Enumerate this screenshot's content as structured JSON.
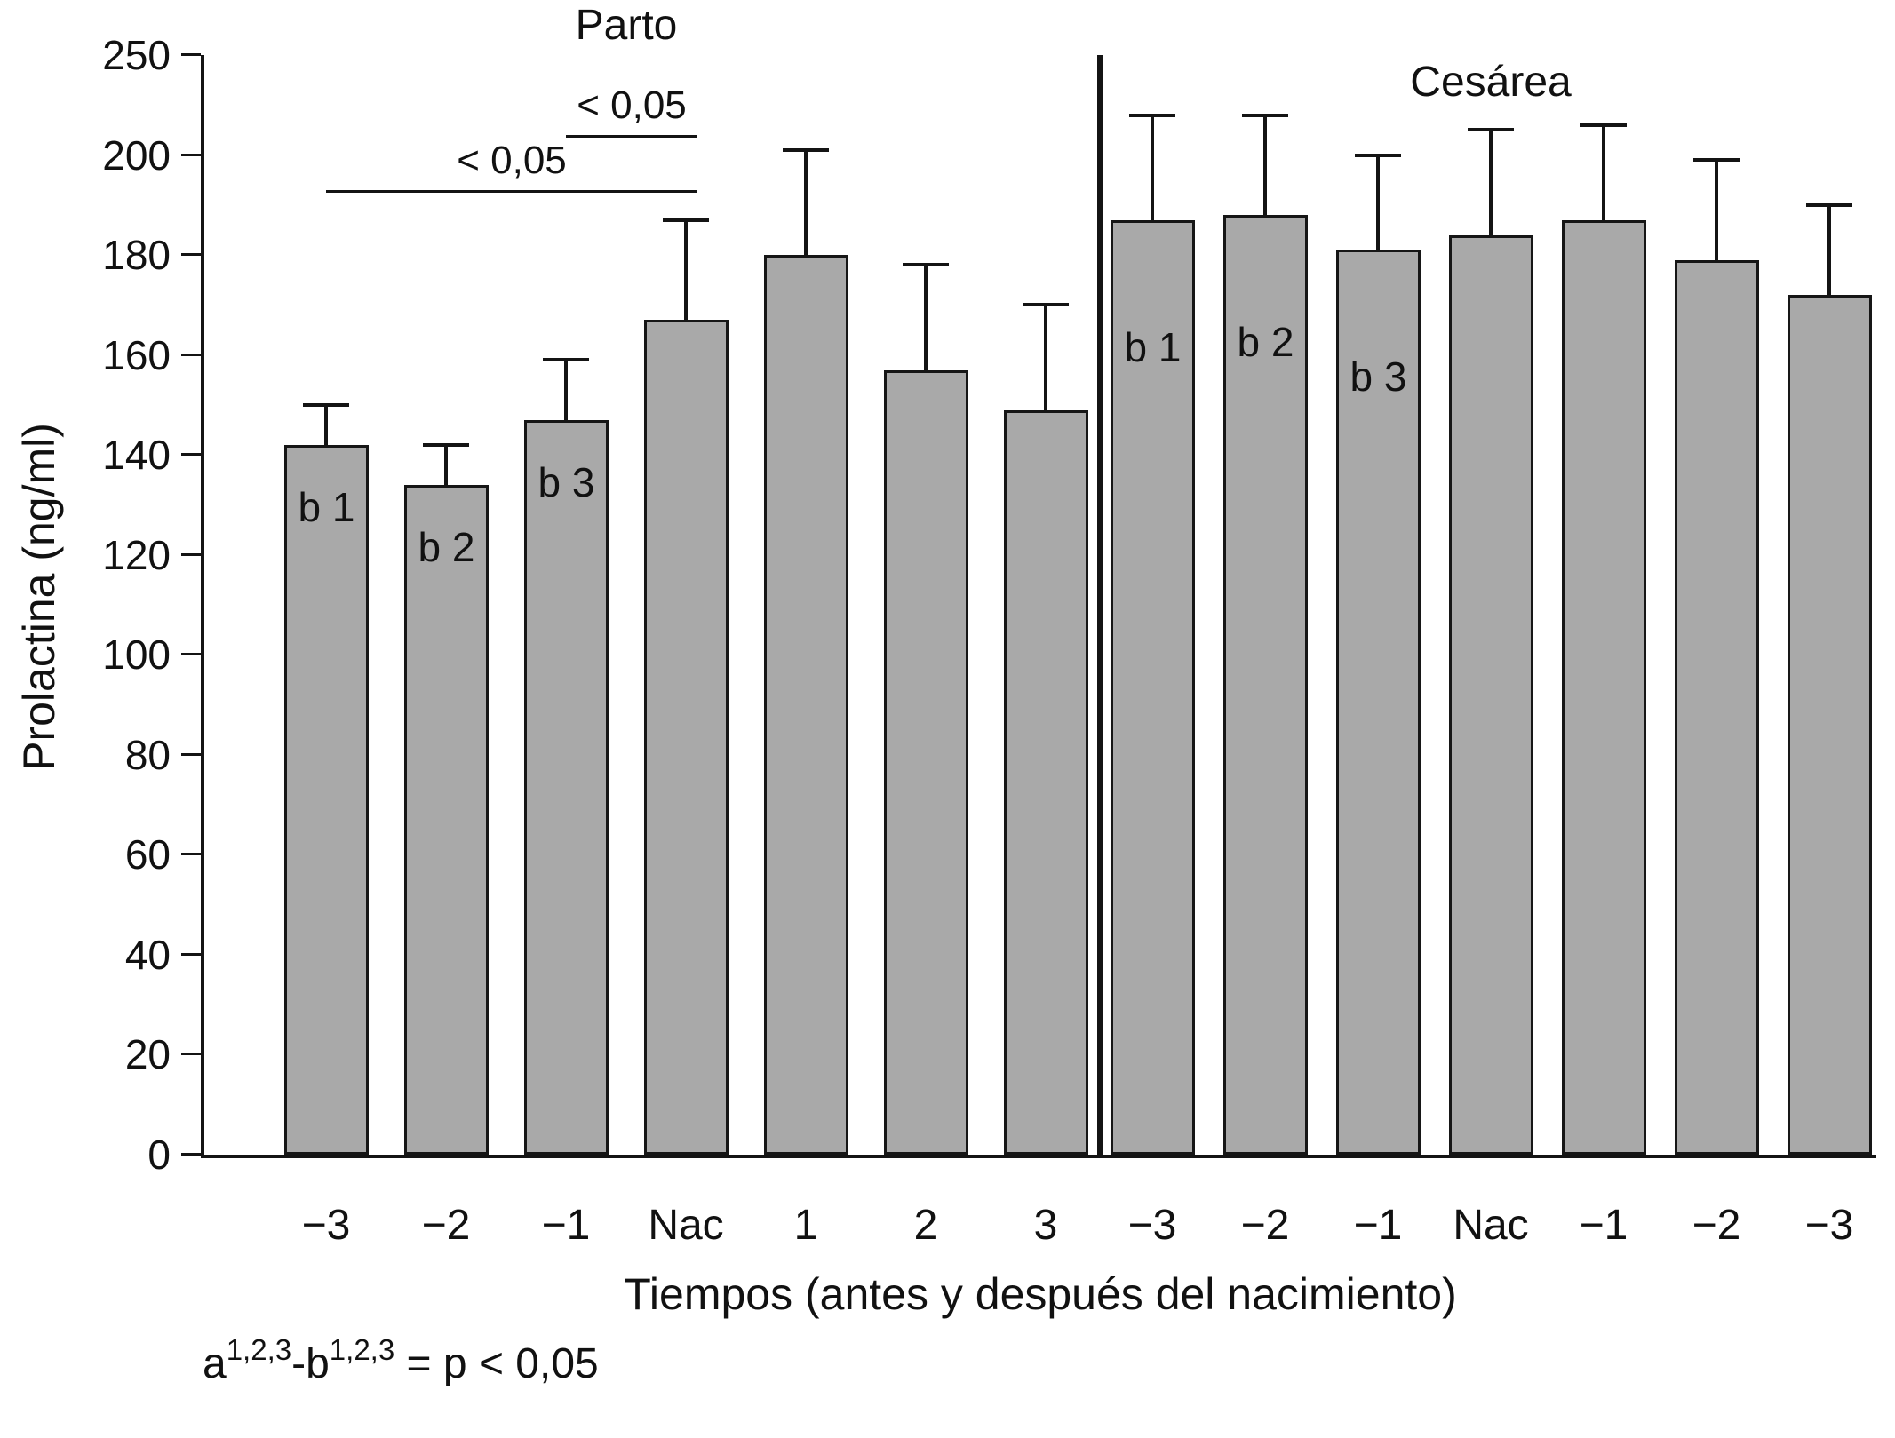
{
  "page": {
    "background": "#ffffff"
  },
  "chart_data": {
    "type": "bar",
    "title": "",
    "ylabel": "Prolactina (ng/ml)",
    "xlabel": "Tiempos (antes y después del nacimiento)",
    "ylim": [
      0,
      250
    ],
    "y_tick_labels": [
      "0",
      "20",
      "40",
      "60",
      "80",
      "100",
      "120",
      "140",
      "160",
      "180",
      "200",
      "250"
    ],
    "y_units_per_tick": 20,
    "grid": false,
    "bar_color": "#a9a9a9",
    "bar_border_color": "#161616",
    "groups": [
      {
        "name": "Parto",
        "categories": [
          "−3",
          "−2",
          "−1",
          "Nac",
          "1",
          "2",
          "3"
        ],
        "values": [
          142,
          134,
          147,
          167,
          180,
          157,
          149
        ],
        "errors_up": [
          8,
          8,
          12,
          20,
          21,
          21,
          21
        ],
        "bar_labels": [
          "b 1",
          "b 2",
          "b 3",
          "",
          "",
          "",
          ""
        ],
        "brackets": [
          {
            "label": "< 0,05",
            "from_bar": 0,
            "to_bar": 3,
            "y_value": 193
          },
          {
            "label": "< 0,05",
            "from_bar": 2,
            "to_bar": 3,
            "y_value": 204
          }
        ]
      },
      {
        "name": "Cesárea",
        "categories": [
          "−3",
          "−2",
          "−1",
          "Nac",
          "−1",
          "−2",
          "−3"
        ],
        "values": [
          187,
          188,
          181,
          184,
          187,
          179,
          172
        ],
        "errors_up": [
          21,
          20,
          19,
          21,
          19,
          20,
          18
        ],
        "bar_labels": [
          "b 1",
          "b 2",
          "b 3",
          "",
          "",
          "",
          ""
        ],
        "brackets": []
      }
    ],
    "footnote": {
      "a": "a",
      "sup1": "1,2,3",
      "dash_b": "-b",
      "sup2": "1,2,3",
      "rest": " = p < 0,05"
    }
  }
}
